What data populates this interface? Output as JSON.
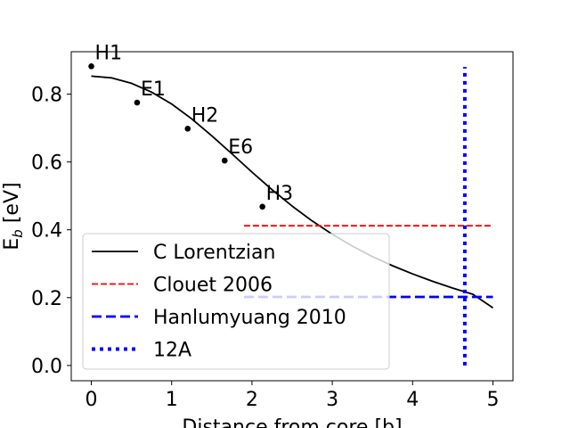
{
  "chart_data": {
    "type": "line",
    "xlabel": "Distance from core [b]",
    "ylabel": "E",
    "ylabel_sub": "b",
    "ylabel_unit": " [eV]",
    "xlim": [
      -0.25,
      5.25
    ],
    "ylim": [
      -0.045,
      0.925
    ],
    "xticks": [
      0,
      1,
      2,
      3,
      4,
      5
    ],
    "yticks": [
      0.0,
      0.2,
      0.4,
      0.6,
      0.8
    ],
    "xtick_labels": [
      "0",
      "1",
      "2",
      "3",
      "4",
      "5"
    ],
    "ytick_labels": [
      "0.0",
      "0.2",
      "0.4",
      "0.6",
      "0.8"
    ],
    "legend_position": "lower-left",
    "points": [
      {
        "label": "H1",
        "x": 0.0,
        "y": 0.882
      },
      {
        "label": "E1",
        "x": 0.57,
        "y": 0.775
      },
      {
        "label": "H2",
        "x": 1.2,
        "y": 0.698
      },
      {
        "label": "E6",
        "x": 1.66,
        "y": 0.604
      },
      {
        "label": "H3",
        "x": 2.13,
        "y": 0.468
      }
    ],
    "series": [
      {
        "name": "C Lorentzian",
        "style": "solid",
        "color": "#000000",
        "x": [
          0,
          0.25,
          0.5,
          0.75,
          1.0,
          1.25,
          1.5,
          1.75,
          2.0,
          2.25,
          2.5,
          2.75,
          3.0,
          3.25,
          3.5,
          3.75,
          4.0,
          4.25,
          4.5,
          4.75,
          5.0
        ],
        "y": [
          0.853,
          0.848,
          0.832,
          0.806,
          0.771,
          0.727,
          0.677,
          0.624,
          0.57,
          0.518,
          0.47,
          0.426,
          0.387,
          0.352,
          0.321,
          0.294,
          0.27,
          0.248,
          0.228,
          0.21,
          0.17
        ]
      },
      {
        "name": "Clouet 2006",
        "style": "dashed",
        "color": "#ff0000",
        "x": [
          1.9,
          5.0
        ],
        "y": [
          0.412,
          0.412
        ]
      },
      {
        "name": "Hanlumyuang 2010",
        "style": "dashed-bold",
        "color": "#0000ff",
        "x": [
          1.9,
          5.0
        ],
        "y": [
          0.202,
          0.202
        ]
      },
      {
        "name": "12A",
        "style": "dotted",
        "color": "#0000ff",
        "x": [
          4.65,
          4.65
        ],
        "y": [
          0.0,
          0.88
        ]
      }
    ]
  }
}
